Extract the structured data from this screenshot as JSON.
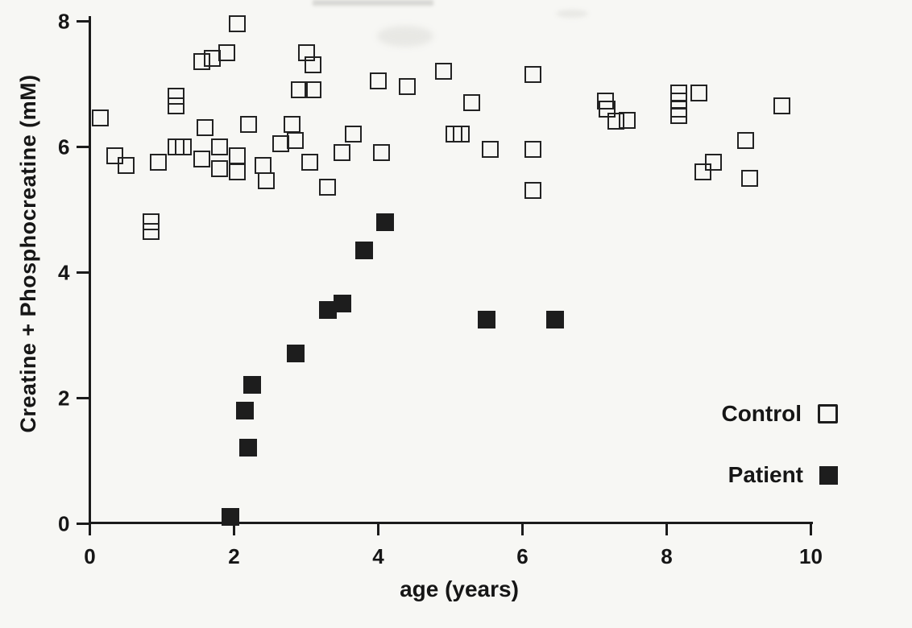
{
  "figure": {
    "paper_color": "#f7f7f4",
    "ink_color": "#1d1d1d"
  },
  "chart_data": {
    "type": "scatter",
    "title": "",
    "xlabel": "age (years)",
    "ylabel": "Creatine + Phosphocreatine (mM)",
    "xlim": [
      0,
      10
    ],
    "ylim": [
      0,
      8
    ],
    "xticks": [
      0,
      2,
      4,
      6,
      8,
      10
    ],
    "yticks": [
      0,
      2,
      4,
      6,
      8
    ],
    "grid": false,
    "legend_position": "lower-right",
    "series": [
      {
        "name": "Control",
        "marker": "open-square",
        "points": [
          [
            0.15,
            6.45
          ],
          [
            0.35,
            5.85
          ],
          [
            0.5,
            5.7
          ],
          [
            0.85,
            4.8
          ],
          [
            0.85,
            4.65
          ],
          [
            0.95,
            5.75
          ],
          [
            1.2,
            6.8
          ],
          [
            1.2,
            6.65
          ],
          [
            1.2,
            6.0
          ],
          [
            1.3,
            6.0
          ],
          [
            1.55,
            7.35
          ],
          [
            1.7,
            7.4
          ],
          [
            1.9,
            7.5
          ],
          [
            1.55,
            5.8
          ],
          [
            1.6,
            6.3
          ],
          [
            1.8,
            6.0
          ],
          [
            1.8,
            5.65
          ],
          [
            2.05,
            7.95
          ],
          [
            2.05,
            5.85
          ],
          [
            2.05,
            5.6
          ],
          [
            2.2,
            6.35
          ],
          [
            2.4,
            5.7
          ],
          [
            2.45,
            5.45
          ],
          [
            2.65,
            6.05
          ],
          [
            2.8,
            6.35
          ],
          [
            2.85,
            6.1
          ],
          [
            2.9,
            6.9
          ],
          [
            3.1,
            6.9
          ],
          [
            3.0,
            7.5
          ],
          [
            3.1,
            7.3
          ],
          [
            3.05,
            5.75
          ],
          [
            3.3,
            5.35
          ],
          [
            3.5,
            5.9
          ],
          [
            3.65,
            6.2
          ],
          [
            4.0,
            7.05
          ],
          [
            4.05,
            5.9
          ],
          [
            4.4,
            6.95
          ],
          [
            4.9,
            7.2
          ],
          [
            5.05,
            6.2
          ],
          [
            5.15,
            6.2
          ],
          [
            5.3,
            6.7
          ],
          [
            5.55,
            5.95
          ],
          [
            6.15,
            7.15
          ],
          [
            6.15,
            5.95
          ],
          [
            6.15,
            5.3
          ],
          [
            7.15,
            6.72
          ],
          [
            7.17,
            6.6
          ],
          [
            7.3,
            6.4
          ],
          [
            7.45,
            6.42
          ],
          [
            8.17,
            6.85
          ],
          [
            8.17,
            6.73
          ],
          [
            8.17,
            6.6
          ],
          [
            8.17,
            6.5
          ],
          [
            8.45,
            6.85
          ],
          [
            8.5,
            5.6
          ],
          [
            8.65,
            5.75
          ],
          [
            9.1,
            6.1
          ],
          [
            9.15,
            5.5
          ],
          [
            9.6,
            6.65
          ]
        ]
      },
      {
        "name": "Patient",
        "marker": "filled-square",
        "points": [
          [
            1.95,
            0.1
          ],
          [
            2.15,
            1.8
          ],
          [
            2.2,
            1.2
          ],
          [
            2.25,
            2.2
          ],
          [
            2.85,
            2.7
          ],
          [
            3.3,
            3.4
          ],
          [
            3.5,
            3.5
          ],
          [
            3.8,
            4.35
          ],
          [
            4.1,
            4.8
          ],
          [
            5.5,
            3.25
          ],
          [
            6.45,
            3.25
          ]
        ]
      }
    ]
  },
  "legend": {
    "control_label": "Control",
    "patient_label": "Patient"
  }
}
